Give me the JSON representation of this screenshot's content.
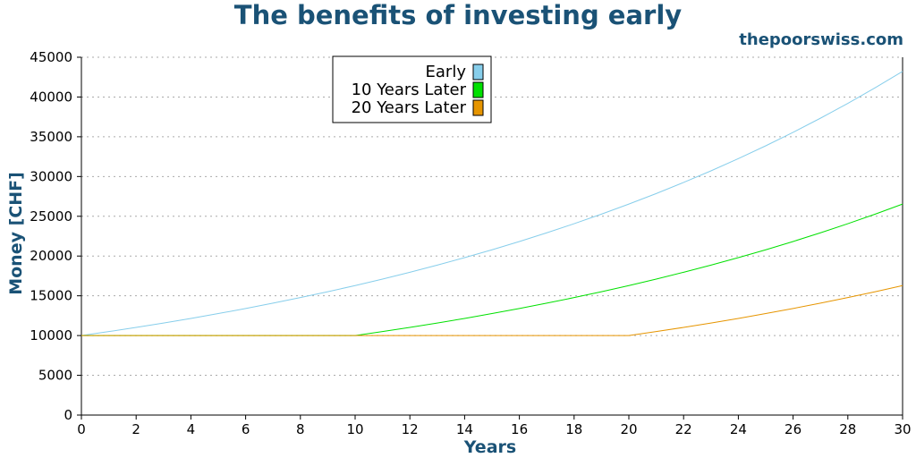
{
  "header": {
    "title": "The benefits of investing early",
    "source": "thepoorswiss.com"
  },
  "chart_data": {
    "type": "line",
    "xlabel": "Years",
    "ylabel": "Money [CHF]",
    "xlim": [
      0,
      30
    ],
    "ylim": [
      0,
      45000
    ],
    "x_ticks": [
      0,
      2,
      4,
      6,
      8,
      10,
      12,
      14,
      16,
      18,
      20,
      22,
      24,
      26,
      28,
      30
    ],
    "y_ticks": [
      0,
      5000,
      10000,
      15000,
      20000,
      25000,
      30000,
      35000,
      40000,
      45000
    ],
    "grid": "horizontal dotted",
    "legend_position": "top-center",
    "x": [
      0,
      1,
      2,
      3,
      4,
      5,
      6,
      7,
      8,
      9,
      10,
      11,
      12,
      13,
      14,
      15,
      16,
      17,
      18,
      19,
      20,
      21,
      22,
      23,
      24,
      25,
      26,
      27,
      28,
      29,
      30
    ],
    "series": [
      {
        "name": "Early",
        "color": "#87ceeb",
        "values": [
          10000,
          10500,
          11025,
          11576,
          12155,
          12763,
          13401,
          14071,
          14775,
          15513,
          16289,
          17103,
          17959,
          18856,
          19799,
          20789,
          21829,
          22920,
          24066,
          25270,
          26533,
          27860,
          29253,
          30715,
          32251,
          33864,
          35557,
          37335,
          39201,
          41161,
          43219
        ]
      },
      {
        "name": "10 Years Later",
        "color": "#00e000",
        "values": [
          10000,
          10000,
          10000,
          10000,
          10000,
          10000,
          10000,
          10000,
          10000,
          10000,
          10000,
          10500,
          11025,
          11576,
          12155,
          12763,
          13401,
          14071,
          14775,
          15513,
          16289,
          17103,
          17959,
          18856,
          19799,
          20789,
          21829,
          22920,
          24066,
          25270,
          26533
        ]
      },
      {
        "name": "20 Years Later",
        "color": "#e69500",
        "values": [
          10000,
          10000,
          10000,
          10000,
          10000,
          10000,
          10000,
          10000,
          10000,
          10000,
          10000,
          10000,
          10000,
          10000,
          10000,
          10000,
          10000,
          10000,
          10000,
          10000,
          10000,
          10500,
          11025,
          11576,
          12155,
          12763,
          13401,
          14071,
          14775,
          15513,
          16289
        ]
      }
    ]
  }
}
